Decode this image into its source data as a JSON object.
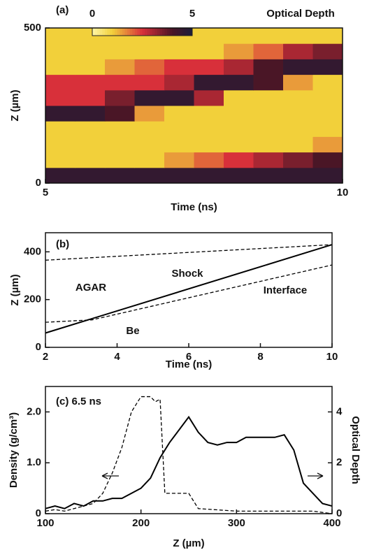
{
  "chart_data": [
    {
      "type": "heatmap",
      "panel_label": "(a)",
      "x_label": "Time (ns)",
      "y_label": "Z (µm)",
      "xlim": [
        5,
        10
      ],
      "ylim": [
        0,
        500
      ],
      "xticks": [
        5,
        10
      ],
      "yticks": [
        0,
        500
      ],
      "colorbar_label": "Optical Depth",
      "colorbar_ticks": [
        0,
        5
      ],
      "colorscale": [
        {
          "value": 0,
          "color": "#fff6a8"
        },
        {
          "value": 1,
          "color": "#f2d03a"
        },
        {
          "value": 2.5,
          "color": "#d8303a"
        },
        {
          "value": 4,
          "color": "#4a1626"
        },
        {
          "value": 5,
          "color": "#1c1c3a"
        }
      ],
      "z": [
        [
          4.5,
          4.5,
          4.5,
          4.5,
          4.5,
          4.5,
          4.5,
          4.5,
          4.5,
          4.5
        ],
        [
          1,
          1,
          1,
          1,
          1.5,
          2,
          2.5,
          3,
          3.5,
          4
        ],
        [
          1,
          1,
          1,
          1,
          1,
          1,
          1,
          1,
          1,
          1.5
        ],
        [
          1,
          1,
          1,
          1,
          1,
          1,
          1,
          1,
          1,
          1
        ],
        [
          4.5,
          4.5,
          4,
          1.5,
          1,
          1,
          1,
          1,
          1,
          1
        ],
        [
          2.5,
          2.5,
          3.5,
          4.5,
          4.5,
          3,
          1,
          1,
          1,
          1
        ],
        [
          2.5,
          2.5,
          2.5,
          2.5,
          3,
          4.5,
          4.5,
          4,
          1.5,
          1
        ],
        [
          1,
          1,
          1.5,
          2,
          2.5,
          2.5,
          3,
          4,
          4.5,
          4.5
        ],
        [
          1,
          1,
          1,
          1,
          1,
          1,
          1.5,
          2,
          3,
          3.5
        ],
        [
          1,
          1,
          1,
          1,
          1,
          1,
          1,
          1,
          1,
          1
        ]
      ]
    },
    {
      "type": "line",
      "panel_label": "(b)",
      "x_label": "Time (ns)",
      "y_label": "Z (µm)",
      "xlim": [
        2,
        10
      ],
      "ylim": [
        0,
        480
      ],
      "xticks": [
        2,
        4,
        6,
        8,
        10
      ],
      "yticks": [
        0,
        200,
        400
      ],
      "annotations": [
        "AGAR",
        "Be"
      ],
      "series": [
        {
          "name": "Shock",
          "color": "#000000",
          "dash": false,
          "x": [
            2,
            10
          ],
          "values": [
            60,
            430
          ]
        },
        {
          "name": "Interface",
          "color": "#000000",
          "dash": true,
          "x": [
            2,
            3.3,
            10
          ],
          "values": [
            105,
            115,
            345
          ]
        },
        {
          "color": "#000000",
          "dash": true,
          "x": [
            2,
            10
          ],
          "values": [
            365,
            430
          ]
        }
      ]
    },
    {
      "type": "line",
      "panel_label": "(c) 6.5 ns",
      "x_label": "Z (µm)",
      "y_label": "Density (g/cm³)",
      "y2_label": "Optical Depth",
      "xlim": [
        100,
        400
      ],
      "ylim": [
        0,
        2.5
      ],
      "y2lim": [
        0,
        5
      ],
      "xticks": [
        100,
        200,
        300,
        400
      ],
      "yticks": [
        0,
        {
          "value": 1,
          "label": "1.0"
        },
        {
          "value": 2,
          "label": "2.0"
        }
      ],
      "y2ticks": [
        0,
        2,
        4
      ],
      "series": [
        {
          "color": "#000000",
          "dash": true,
          "x": [
            100,
            110,
            120,
            130,
            140,
            150,
            160,
            170,
            180,
            190,
            200,
            210,
            215,
            220,
            225,
            240,
            250,
            260,
            300,
            350,
            380,
            400
          ],
          "values": [
            0.05,
            0.08,
            0.05,
            0.1,
            0.15,
            0.2,
            0.4,
            0.8,
            1.3,
            2.0,
            2.3,
            2.3,
            2.2,
            2.25,
            0.4,
            0.4,
            0.4,
            0.1,
            0.05,
            0.05,
            0.05,
            0
          ]
        },
        {
          "color": "#000000",
          "dash": false,
          "axis": "y2",
          "x": [
            100,
            110,
            120,
            130,
            140,
            150,
            160,
            170,
            180,
            190,
            200,
            210,
            220,
            230,
            240,
            250,
            260,
            270,
            280,
            290,
            300,
            310,
            320,
            330,
            340,
            350,
            360,
            370,
            380,
            390,
            400
          ],
          "values": [
            0.2,
            0.3,
            0.2,
            0.4,
            0.3,
            0.5,
            0.5,
            0.6,
            0.6,
            0.8,
            1.0,
            1.4,
            2.2,
            2.8,
            3.3,
            3.8,
            3.2,
            2.8,
            2.7,
            2.8,
            2.8,
            3.0,
            3.0,
            3.0,
            3.0,
            3.1,
            2.5,
            1.2,
            0.8,
            0.4,
            0.3
          ]
        }
      ]
    }
  ]
}
